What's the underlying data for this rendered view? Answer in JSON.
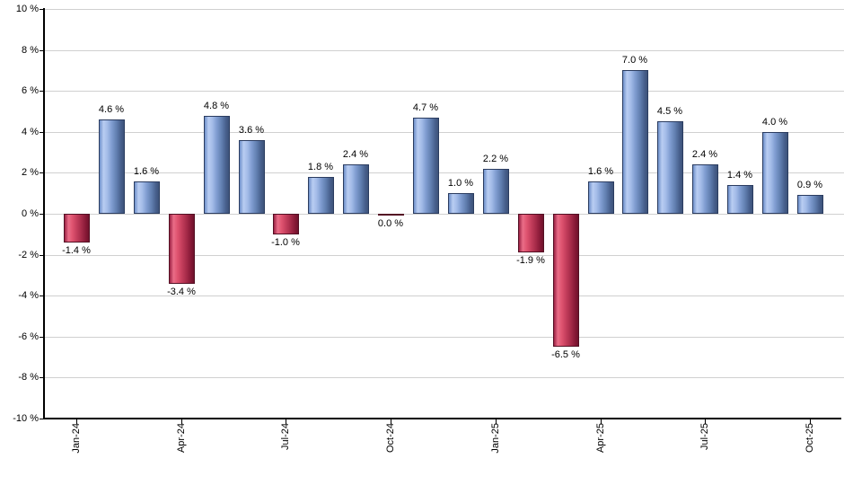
{
  "chart_data": {
    "type": "bar",
    "title": "",
    "grid": "horizontal",
    "x_axis": {
      "tick_labels": [
        "Jan-24",
        "Apr-24",
        "Jul-24",
        "Oct-24",
        "Jan-25",
        "Apr-25",
        "Jul-25",
        "Oct-25"
      ],
      "tick_bar_indices": [
        0,
        3,
        6,
        9,
        12,
        15,
        18,
        21
      ]
    },
    "y_axis": {
      "min": -10,
      "max": 10,
      "step": 2,
      "unit": "%",
      "tick_values": [
        10,
        8,
        6,
        4,
        2,
        0,
        -2,
        -4,
        -6,
        -8,
        -10
      ],
      "tick_labels": [
        "10 %",
        "8 %",
        "6 %",
        "4 %",
        "2 %",
        "0 %",
        "-2 %",
        "-4 %",
        "-6 %",
        "-8 %",
        "-10 %"
      ]
    },
    "series": [
      {
        "name": "monthly-return-percent",
        "values": [
          -1.4,
          4.6,
          1.6,
          -3.4,
          4.8,
          3.6,
          -1.0,
          1.8,
          2.4,
          0.0,
          4.7,
          1.0,
          2.2,
          -1.9,
          -6.5,
          1.6,
          7.0,
          4.5,
          2.4,
          1.4,
          4.0,
          0.9
        ],
        "value_labels": [
          "-1.4 %",
          "4.6 %",
          "1.6 %",
          "-3.4 %",
          "4.8 %",
          "3.6 %",
          "-1.0 %",
          "1.8 %",
          "2.4 %",
          "0.0 %",
          "4.7 %",
          "1.0 %",
          "2.2 %",
          "-1.9 %",
          "-6.5 %",
          "1.6 %",
          "7.0 %",
          "4.5 %",
          "2.4 %",
          "1.4 %",
          "4.0 %",
          "0.9 %"
        ]
      }
    ],
    "legend": "none",
    "colors": {
      "positive_bar_light": "#b9cdf2",
      "positive_bar_mid": "#7f9cd0",
      "positive_bar_dark": "#3d5379",
      "negative_bar_light": "#ea6d88",
      "negative_bar_mid": "#c43e5c",
      "negative_bar_dark": "#6f122c",
      "gridline": "#d0d0d0",
      "axis": "#000000",
      "text": "#000000",
      "background": "#ffffff"
    }
  }
}
